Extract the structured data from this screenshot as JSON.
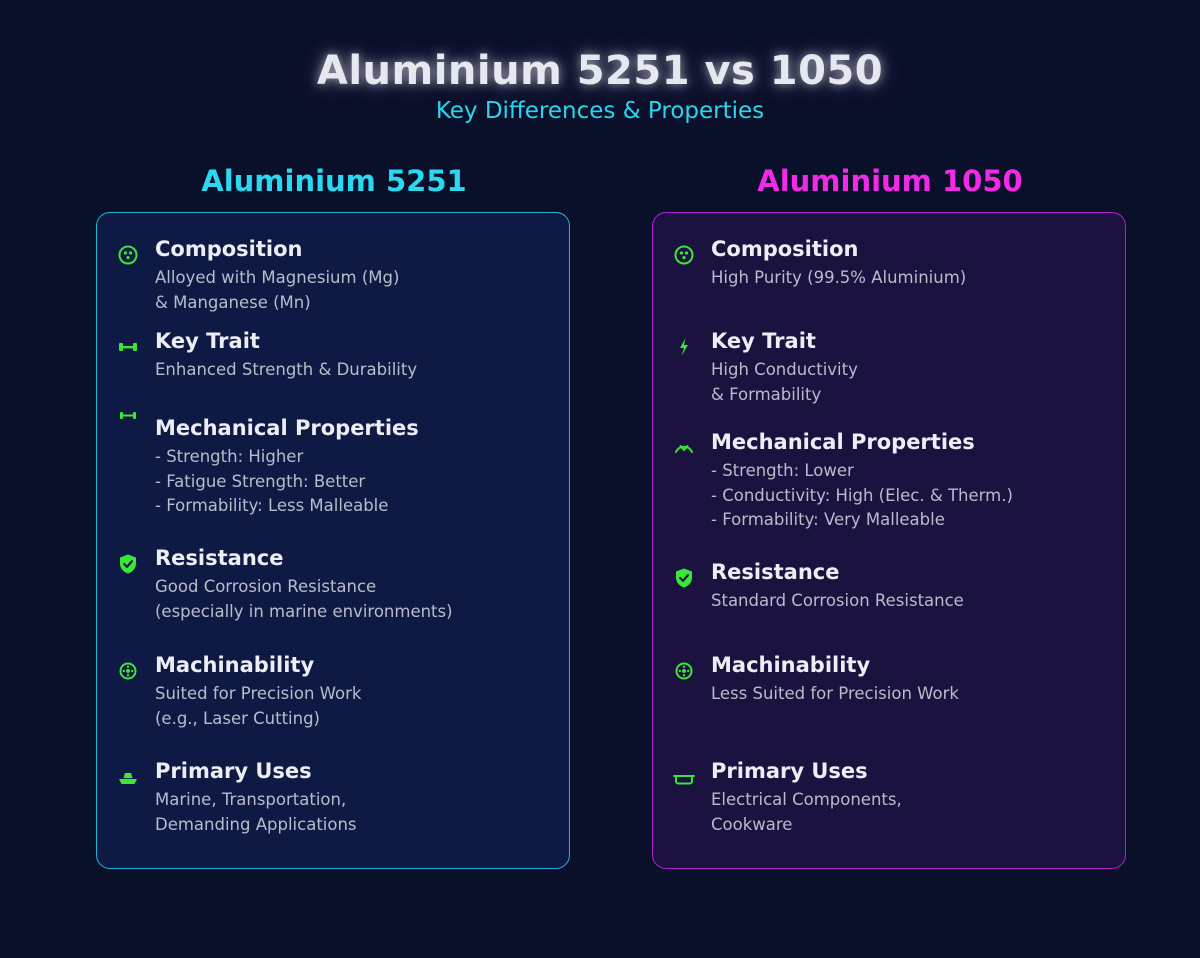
{
  "header": {
    "title": "Aluminium 5251 vs 1050",
    "subtitle": "Key Differences & Properties"
  },
  "colors": {
    "background": "#0b102a",
    "accent_cyan": "#2ad8f0",
    "accent_magenta": "#f02ae6",
    "icon_green": "#39e639"
  },
  "columns": [
    {
      "heading": "Aluminium 5251",
      "items": [
        {
          "icon": "composition-icon",
          "title": "Composition",
          "lines": [
            "Alloyed with Magnesium (Mg)",
            "& Manganese (Mn)"
          ]
        },
        {
          "icon": "dumbbell-icon",
          "title": "Key Trait",
          "lines": [
            "Enhanced Strength & Durability"
          ]
        },
        {
          "icon": "dumbbell-icon",
          "title": "Mechanical Properties",
          "lines": [
            "- Strength: Higher",
            "- Fatigue Strength: Better",
            "- Formability: Less Malleable"
          ]
        },
        {
          "icon": "shield-check-icon",
          "title": "Resistance",
          "lines": [
            "Good Corrosion Resistance",
            "(especially in marine environments)"
          ]
        },
        {
          "icon": "gear-icon",
          "title": "Machinability",
          "lines": [
            "Suited for Precision Work",
            "(e.g., Laser Cutting)"
          ]
        },
        {
          "icon": "ship-icon",
          "title": "Primary Uses",
          "lines": [
            "Marine, Transportation,",
            "Demanding Applications"
          ]
        }
      ]
    },
    {
      "heading": "Aluminium 1050",
      "items": [
        {
          "icon": "composition-icon",
          "title": "Composition",
          "lines": [
            "High Purity (99.5% Aluminium)"
          ]
        },
        {
          "icon": "lightning-icon",
          "title": "Key Trait",
          "lines": [
            "High Conductivity",
            "& Formability"
          ]
        },
        {
          "icon": "bend-icon",
          "title": "Mechanical Properties",
          "lines": [
            "- Strength: Lower",
            "- Conductivity: High (Elec. & Therm.)",
            "- Formability: Very Malleable"
          ]
        },
        {
          "icon": "shield-check-icon",
          "title": "Resistance",
          "lines": [
            "Standard Corrosion Resistance"
          ]
        },
        {
          "icon": "gear-icon",
          "title": "Machinability",
          "lines": [
            "Less Suited for Precision Work"
          ]
        },
        {
          "icon": "cookware-icon",
          "title": "Primary Uses",
          "lines": [
            "Electrical Components,",
            "Cookware"
          ]
        }
      ]
    }
  ]
}
